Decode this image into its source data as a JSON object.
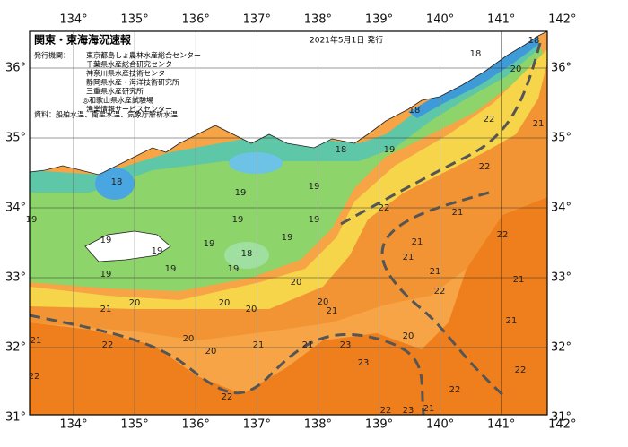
{
  "header": {
    "title": "関東・東海海況速報",
    "date": "2021年5月1日 発行"
  },
  "publishers": {
    "label": "発行機関：",
    "names": [
      "東京都島しょ農林水産総合センター",
      "千葉県水産総合研究センター",
      "神奈川県水産技術センター",
      "静岡県水産・海洋技術研究所",
      "三重県水産研究所",
      "◎和歌山県水産試験場",
      "漁業情報サービスセンター"
    ]
  },
  "source": "資料：船舶水温、衛星水温、気象庁解析水温",
  "axes": {
    "longitudes": [
      "134°",
      "135°",
      "136°",
      "137°",
      "138°",
      "139°",
      "140°",
      "141°",
      "142°"
    ],
    "latitudes": [
      "36°",
      "35°",
      "34°",
      "33°",
      "32°",
      "31°"
    ]
  },
  "contour_labels": [
    "19",
    "19",
    "19",
    "19",
    "19",
    "19",
    "19",
    "19",
    "19",
    "19",
    "19",
    "18",
    "18",
    "18",
    "18",
    "19",
    "18",
    "18",
    "19",
    "20",
    "20",
    "20",
    "20",
    "20",
    "20",
    "20",
    "20",
    "20",
    "21",
    "21",
    "21",
    "21",
    "21",
    "21",
    "21",
    "21",
    "21",
    "21",
    "21",
    "21",
    "22",
    "22",
    "22",
    "22",
    "22",
    "22",
    "22",
    "22",
    "22",
    "22",
    "23",
    "23",
    "23",
    "22",
    "21"
  ]
}
